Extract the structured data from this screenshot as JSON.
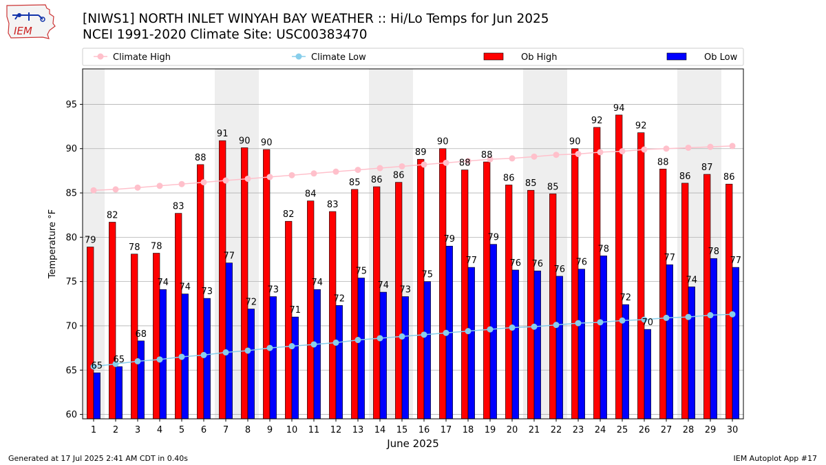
{
  "header": {
    "title": "[NIWS1] NORTH INLET WINYAH BAY WEATHER :: Hi/Lo Temps for Jun 2025",
    "subtitle": "NCEI 1991-2020 Climate Site: USC00383470",
    "logo_text": "IEM"
  },
  "footer": {
    "generated": "Generated at 17 Jul 2025 2:41 AM CDT in 0.40s",
    "app": "IEM Autoplot App #17"
  },
  "chart_data": {
    "type": "bar",
    "xlabel": "June 2025",
    "ylabel": "Temperature °F",
    "ylim": [
      59.5,
      99
    ],
    "yticks": [
      60,
      65,
      70,
      75,
      80,
      85,
      90,
      95
    ],
    "grid": true,
    "legend_placement": "top",
    "weekend_shading_days": [
      1,
      7,
      8,
      14,
      15,
      21,
      22,
      28,
      29
    ],
    "categories": [
      1,
      2,
      3,
      4,
      5,
      6,
      7,
      8,
      9,
      10,
      11,
      12,
      13,
      14,
      15,
      16,
      17,
      18,
      19,
      20,
      21,
      22,
      23,
      24,
      25,
      26,
      27,
      28,
      29,
      30
    ],
    "series": [
      {
        "name": "Climate High",
        "kind": "line",
        "color": "#ffc0cb",
        "values": [
          85.3,
          85.4,
          85.6,
          85.8,
          86.0,
          86.2,
          86.4,
          86.6,
          86.8,
          87.0,
          87.2,
          87.4,
          87.6,
          87.8,
          88.0,
          88.2,
          88.4,
          88.6,
          88.8,
          88.9,
          89.1,
          89.3,
          89.4,
          89.6,
          89.7,
          89.9,
          90.0,
          90.1,
          90.2,
          90.3
        ]
      },
      {
        "name": "Climate Low",
        "kind": "line",
        "color": "#87ceeb",
        "values": [
          65.4,
          65.7,
          66.0,
          66.2,
          66.5,
          66.7,
          67.0,
          67.2,
          67.5,
          67.7,
          67.9,
          68.1,
          68.4,
          68.6,
          68.8,
          69.0,
          69.2,
          69.4,
          69.6,
          69.8,
          69.9,
          70.1,
          70.3,
          70.4,
          70.6,
          70.7,
          70.9,
          71.0,
          71.2,
          71.3
        ]
      },
      {
        "name": "Ob High",
        "kind": "bar",
        "color": "#ff0000",
        "values": [
          78.9,
          81.7,
          78.1,
          78.2,
          82.7,
          88.2,
          90.9,
          90.1,
          89.9,
          81.8,
          84.1,
          82.9,
          85.4,
          85.7,
          86.2,
          88.8,
          90.0,
          87.6,
          88.5,
          85.9,
          85.3,
          84.9,
          90.0,
          92.4,
          93.8,
          91.8,
          87.7,
          86.1,
          87.1,
          86.0
        ],
        "labels": [
          79,
          82,
          78,
          78,
          83,
          88,
          91,
          90,
          90,
          82,
          84,
          83,
          85,
          86,
          86,
          89,
          90,
          88,
          88,
          86,
          85,
          85,
          90,
          92,
          94,
          92,
          88,
          86,
          87,
          86
        ]
      },
      {
        "name": "Ob Low",
        "kind": "bar",
        "color": "#0000ff",
        "values": [
          64.7,
          65.4,
          68.3,
          74.1,
          73.6,
          73.1,
          77.1,
          71.9,
          73.3,
          71.0,
          74.1,
          72.3,
          75.4,
          73.8,
          73.3,
          75.0,
          79.0,
          76.6,
          79.2,
          76.3,
          76.2,
          75.6,
          76.4,
          77.9,
          72.4,
          69.6,
          76.9,
          74.4,
          77.6,
          76.6
        ],
        "labels": [
          65,
          65,
          68,
          74,
          74,
          73,
          77,
          72,
          73,
          71,
          74,
          72,
          75,
          74,
          73,
          75,
          79,
          77,
          79,
          76,
          76,
          76,
          76,
          78,
          72,
          70,
          77,
          74,
          78,
          77
        ]
      }
    ]
  }
}
